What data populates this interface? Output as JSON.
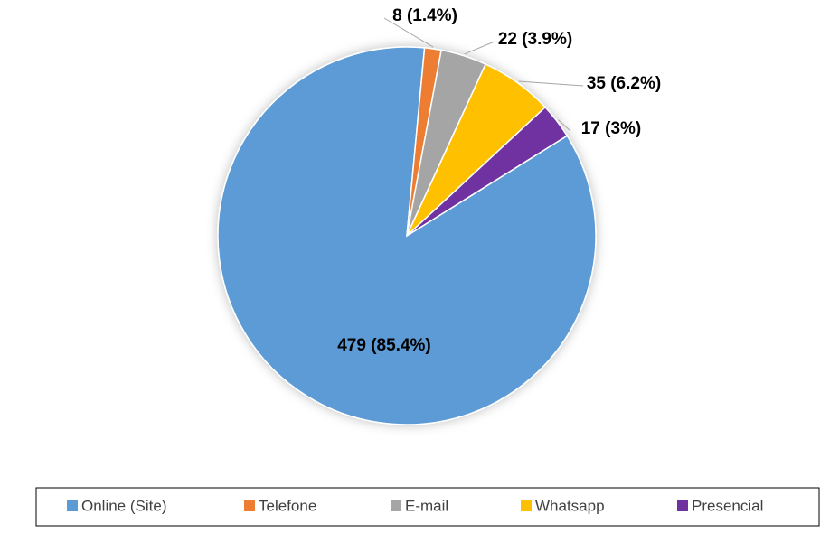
{
  "chart_data": {
    "type": "pie",
    "categories": [
      "Online (Site)",
      "Telefone",
      "E-mail",
      "Whatsapp",
      "Presencial"
    ],
    "values": [
      479,
      8,
      22,
      35,
      17
    ],
    "value_labels": [
      "479 (85.4%)",
      "8 (1.4%)",
      "22 (3.9%)",
      "35 (6.2%)",
      "17 (3%)"
    ],
    "colors": [
      "#5b9bd5",
      "#ed7d31",
      "#a5a5a5",
      "#ffc000",
      "#7030a0"
    ],
    "legend": "bottom"
  }
}
